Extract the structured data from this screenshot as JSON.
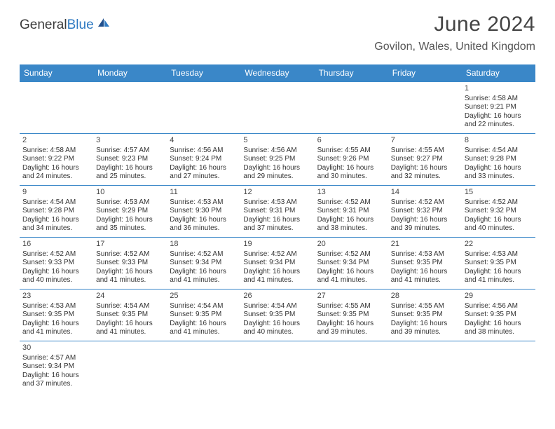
{
  "brand": {
    "name_general": "General",
    "name_blue": "Blue"
  },
  "title": {
    "month": "June 2024",
    "location": "Govilon, Wales, United Kingdom"
  },
  "colors": {
    "header_bg": "#3a87c8",
    "header_fg": "#ffffff",
    "rule": "#3a87c8",
    "text": "#333333",
    "brand_blue": "#2f7ac2"
  },
  "day_names": [
    "Sunday",
    "Monday",
    "Tuesday",
    "Wednesday",
    "Thursday",
    "Friday",
    "Saturday"
  ],
  "layout": {
    "first_day_column_index": 6,
    "days_in_month": 30,
    "columns": 7
  },
  "days": [
    {
      "n": 1,
      "sunrise": "4:58 AM",
      "sunset": "9:21 PM",
      "daylight": "16 hours and 22 minutes."
    },
    {
      "n": 2,
      "sunrise": "4:58 AM",
      "sunset": "9:22 PM",
      "daylight": "16 hours and 24 minutes."
    },
    {
      "n": 3,
      "sunrise": "4:57 AM",
      "sunset": "9:23 PM",
      "daylight": "16 hours and 25 minutes."
    },
    {
      "n": 4,
      "sunrise": "4:56 AM",
      "sunset": "9:24 PM",
      "daylight": "16 hours and 27 minutes."
    },
    {
      "n": 5,
      "sunrise": "4:56 AM",
      "sunset": "9:25 PM",
      "daylight": "16 hours and 29 minutes."
    },
    {
      "n": 6,
      "sunrise": "4:55 AM",
      "sunset": "9:26 PM",
      "daylight": "16 hours and 30 minutes."
    },
    {
      "n": 7,
      "sunrise": "4:55 AM",
      "sunset": "9:27 PM",
      "daylight": "16 hours and 32 minutes."
    },
    {
      "n": 8,
      "sunrise": "4:54 AM",
      "sunset": "9:28 PM",
      "daylight": "16 hours and 33 minutes."
    },
    {
      "n": 9,
      "sunrise": "4:54 AM",
      "sunset": "9:28 PM",
      "daylight": "16 hours and 34 minutes."
    },
    {
      "n": 10,
      "sunrise": "4:53 AM",
      "sunset": "9:29 PM",
      "daylight": "16 hours and 35 minutes."
    },
    {
      "n": 11,
      "sunrise": "4:53 AM",
      "sunset": "9:30 PM",
      "daylight": "16 hours and 36 minutes."
    },
    {
      "n": 12,
      "sunrise": "4:53 AM",
      "sunset": "9:31 PM",
      "daylight": "16 hours and 37 minutes."
    },
    {
      "n": 13,
      "sunrise": "4:52 AM",
      "sunset": "9:31 PM",
      "daylight": "16 hours and 38 minutes."
    },
    {
      "n": 14,
      "sunrise": "4:52 AM",
      "sunset": "9:32 PM",
      "daylight": "16 hours and 39 minutes."
    },
    {
      "n": 15,
      "sunrise": "4:52 AM",
      "sunset": "9:32 PM",
      "daylight": "16 hours and 40 minutes."
    },
    {
      "n": 16,
      "sunrise": "4:52 AM",
      "sunset": "9:33 PM",
      "daylight": "16 hours and 40 minutes."
    },
    {
      "n": 17,
      "sunrise": "4:52 AM",
      "sunset": "9:33 PM",
      "daylight": "16 hours and 41 minutes."
    },
    {
      "n": 18,
      "sunrise": "4:52 AM",
      "sunset": "9:34 PM",
      "daylight": "16 hours and 41 minutes."
    },
    {
      "n": 19,
      "sunrise": "4:52 AM",
      "sunset": "9:34 PM",
      "daylight": "16 hours and 41 minutes."
    },
    {
      "n": 20,
      "sunrise": "4:52 AM",
      "sunset": "9:34 PM",
      "daylight": "16 hours and 41 minutes."
    },
    {
      "n": 21,
      "sunrise": "4:53 AM",
      "sunset": "9:35 PM",
      "daylight": "16 hours and 41 minutes."
    },
    {
      "n": 22,
      "sunrise": "4:53 AM",
      "sunset": "9:35 PM",
      "daylight": "16 hours and 41 minutes."
    },
    {
      "n": 23,
      "sunrise": "4:53 AM",
      "sunset": "9:35 PM",
      "daylight": "16 hours and 41 minutes."
    },
    {
      "n": 24,
      "sunrise": "4:54 AM",
      "sunset": "9:35 PM",
      "daylight": "16 hours and 41 minutes."
    },
    {
      "n": 25,
      "sunrise": "4:54 AM",
      "sunset": "9:35 PM",
      "daylight": "16 hours and 41 minutes."
    },
    {
      "n": 26,
      "sunrise": "4:54 AM",
      "sunset": "9:35 PM",
      "daylight": "16 hours and 40 minutes."
    },
    {
      "n": 27,
      "sunrise": "4:55 AM",
      "sunset": "9:35 PM",
      "daylight": "16 hours and 39 minutes."
    },
    {
      "n": 28,
      "sunrise": "4:55 AM",
      "sunset": "9:35 PM",
      "daylight": "16 hours and 39 minutes."
    },
    {
      "n": 29,
      "sunrise": "4:56 AM",
      "sunset": "9:35 PM",
      "daylight": "16 hours and 38 minutes."
    },
    {
      "n": 30,
      "sunrise": "4:57 AM",
      "sunset": "9:34 PM",
      "daylight": "16 hours and 37 minutes."
    }
  ],
  "labels": {
    "sunrise": "Sunrise:",
    "sunset": "Sunset:",
    "daylight": "Daylight:"
  }
}
